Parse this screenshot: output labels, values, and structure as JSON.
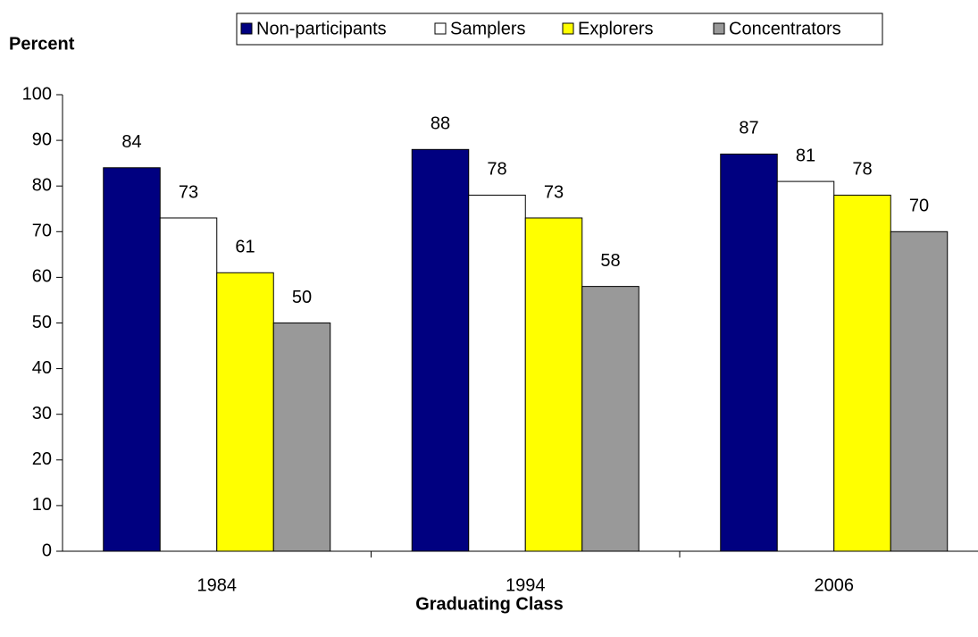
{
  "chart_data": {
    "type": "bar",
    "y_axis_label": "Percent",
    "x_axis_label": "Graduating Class",
    "categories": [
      "1984",
      "1994",
      "2006"
    ],
    "series": [
      {
        "name": "Non-participants",
        "color": "#000080",
        "values": [
          84,
          88,
          87
        ]
      },
      {
        "name": "Samplers",
        "color": "#ffffff",
        "values": [
          73,
          78,
          81
        ]
      },
      {
        "name": "Explorers",
        "color": "#ffff00",
        "values": [
          61,
          73,
          78
        ]
      },
      {
        "name": "Concentrators",
        "color": "#999999",
        "values": [
          50,
          58,
          70
        ]
      }
    ],
    "ylim": [
      0,
      100
    ],
    "yticks": [
      0,
      10,
      20,
      30,
      40,
      50,
      60,
      70,
      80,
      90,
      100
    ],
    "legend": "top"
  }
}
